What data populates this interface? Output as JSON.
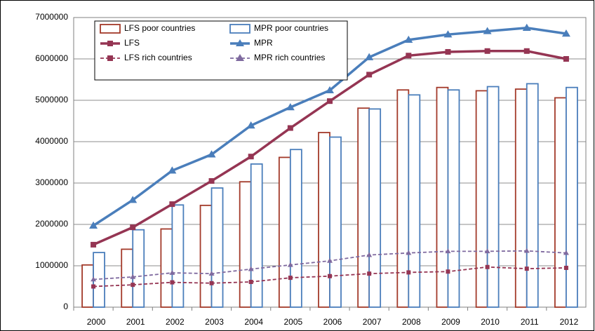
{
  "chart_data": {
    "type": "bar",
    "categories": [
      "2000",
      "2001",
      "2002",
      "2003",
      "2004",
      "2005",
      "2006",
      "2007",
      "2008",
      "2009",
      "2010",
      "2011",
      "2012"
    ],
    "series": [
      {
        "name": "LFS poor countries",
        "type": "bar",
        "color": "#a33a2a",
        "values": [
          1020000,
          1400000,
          1890000,
          2460000,
          3030000,
          3620000,
          4220000,
          4810000,
          5250000,
          5310000,
          5230000,
          5270000,
          5060000
        ]
      },
      {
        "name": "MPR poor countries",
        "type": "bar",
        "color": "#4a7ebb",
        "values": [
          1320000,
          1870000,
          2470000,
          2880000,
          3460000,
          3810000,
          4110000,
          4790000,
          5130000,
          5250000,
          5330000,
          5400000,
          5310000
        ]
      },
      {
        "name": "LFS",
        "type": "line",
        "color": "#953553",
        "marker": "square",
        "dashed": false,
        "values": [
          1510000,
          1930000,
          2490000,
          3050000,
          3640000,
          4330000,
          4980000,
          5620000,
          6080000,
          6170000,
          6190000,
          6190000,
          6000000
        ]
      },
      {
        "name": "MPR",
        "type": "line",
        "color": "#4a7ebb",
        "marker": "triangle",
        "dashed": false,
        "values": [
          1970000,
          2590000,
          3300000,
          3690000,
          4390000,
          4830000,
          5240000,
          6040000,
          6460000,
          6590000,
          6670000,
          6750000,
          6610000
        ]
      },
      {
        "name": "LFS rich countries",
        "type": "line",
        "color": "#953553",
        "marker": "square",
        "dashed": true,
        "values": [
          500000,
          540000,
          600000,
          580000,
          610000,
          710000,
          750000,
          810000,
          840000,
          860000,
          970000,
          930000,
          950000
        ]
      },
      {
        "name": "MPR rich countries",
        "type": "line",
        "color": "#7f6a9f",
        "marker": "triangle",
        "dashed": true,
        "values": [
          670000,
          730000,
          830000,
          810000,
          920000,
          1020000,
          1120000,
          1260000,
          1310000,
          1350000,
          1350000,
          1360000,
          1310000
        ]
      }
    ],
    "ylim": [
      0,
      7000000
    ],
    "yticks": [
      0,
      1000000,
      2000000,
      3000000,
      4000000,
      5000000,
      6000000,
      7000000
    ],
    "grid": true
  }
}
